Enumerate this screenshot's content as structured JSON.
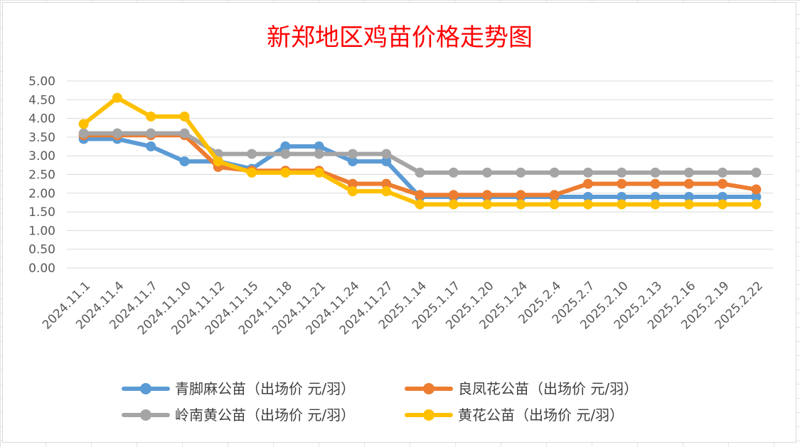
{
  "chart_data": {
    "type": "line",
    "title": "新郑地区鸡苗价格走势图",
    "xlabel": "",
    "ylabel": "",
    "ylim": [
      0,
      5
    ],
    "ytick_labels": [
      "0.00",
      "0.50",
      "1.00",
      "1.50",
      "2.00",
      "2.50",
      "3.00",
      "3.50",
      "4.00",
      "4.50",
      "5.00"
    ],
    "grid": "horizontal",
    "legend_position": "bottom",
    "categories": [
      "2024.11.1",
      "2024.11.4",
      "2024.11.7",
      "2024.11.10",
      "2024.11.12",
      "2024.11.15",
      "2024.11.18",
      "2024.11.21",
      "2024.11.24",
      "2024.11.27",
      "2025.1.14",
      "2025.1.17",
      "2025.1.20",
      "2025.1.24",
      "2025.2.4",
      "2025.2.7",
      "2025.2.10",
      "2025.2.13",
      "2025.2.16",
      "2025.2.19",
      "2025.2.22"
    ],
    "series": [
      {
        "name": "青脚麻公苗（出场价 元/羽）",
        "color": "#5b9bd5",
        "values": [
          3.45,
          3.45,
          3.25,
          2.85,
          2.85,
          2.65,
          3.25,
          3.25,
          2.85,
          2.85,
          1.9,
          1.9,
          1.9,
          1.9,
          1.9,
          1.9,
          1.9,
          1.9,
          1.9,
          1.9,
          1.9
        ]
      },
      {
        "name": "良凤花公苗（出场价 元/羽）",
        "color": "#ed7d31",
        "values": [
          3.55,
          3.55,
          3.55,
          3.55,
          2.7,
          2.6,
          2.6,
          2.6,
          2.25,
          2.25,
          1.95,
          1.95,
          1.95,
          1.95,
          1.95,
          2.25,
          2.25,
          2.25,
          2.25,
          2.25,
          2.1
        ]
      },
      {
        "name": "岭南黄公苗（出场价 元/羽）",
        "color": "#a5a5a5",
        "values": [
          3.6,
          3.6,
          3.6,
          3.6,
          3.05,
          3.05,
          3.05,
          3.05,
          3.05,
          3.05,
          2.55,
          2.55,
          2.55,
          2.55,
          2.55,
          2.55,
          2.55,
          2.55,
          2.55,
          2.55,
          2.55
        ]
      },
      {
        "name": "黄花公苗（出场价 元/羽）",
        "color": "#ffc000",
        "values": [
          3.85,
          4.55,
          4.05,
          4.05,
          2.85,
          2.55,
          2.55,
          2.55,
          2.05,
          2.05,
          1.7,
          1.7,
          1.7,
          1.7,
          1.7,
          1.7,
          1.7,
          1.7,
          1.7,
          1.7,
          1.7
        ]
      }
    ],
    "colors": {
      "title": "#ff0000",
      "gridline": "#d9d9d9",
      "tick_text": "#595959"
    }
  }
}
